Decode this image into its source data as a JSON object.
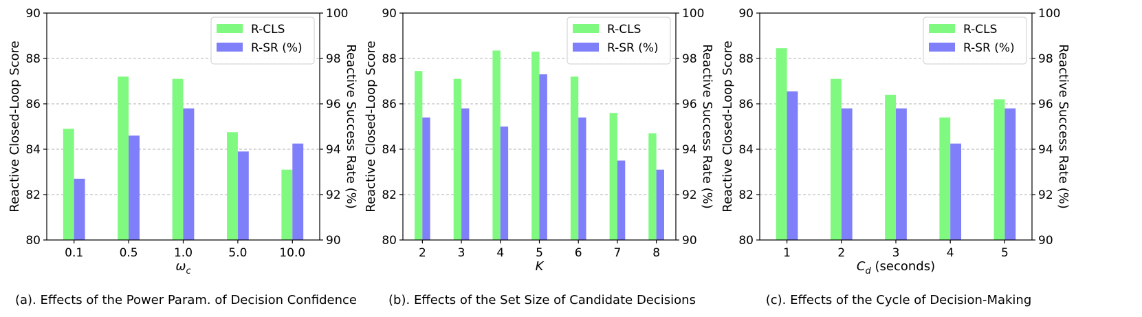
{
  "chart_data": [
    {
      "type": "bar",
      "caption": "(a). Effects of the Power Param. of Decision Confidence",
      "xlabel_parts": [
        {
          "t": "ω",
          "it": true
        },
        {
          "t": "c",
          "it": true,
          "sub": true
        }
      ],
      "ylabel": "Reactive Closed-Loop Score",
      "ylabel_right": "Reactive Success Rate (%)",
      "categories": [
        "0.1",
        "0.5",
        "1.0",
        "5.0",
        "10.0"
      ],
      "ylim": [
        80,
        90
      ],
      "ylim_right": [
        90,
        100
      ],
      "yticks": [
        "80",
        "82",
        "84",
        "86",
        "88",
        "90"
      ],
      "yticks_right": [
        "90",
        "92",
        "94",
        "96",
        "98",
        "100"
      ],
      "series": [
        {
          "name": "R-CLS",
          "axis": "left",
          "color": "#80f980",
          "values": [
            84.9,
            87.2,
            87.1,
            84.75,
            83.1
          ]
        },
        {
          "name": "R-SR (%)",
          "axis": "right",
          "color": "#7f7ff9",
          "values": [
            92.7,
            94.6,
            95.8,
            93.9,
            94.25
          ]
        }
      ],
      "legend_position": "upper right",
      "grid": "y-dashed"
    },
    {
      "type": "bar",
      "caption": "(b). Effects of the Set Size of Candidate Decisions",
      "xlabel_parts": [
        {
          "t": "K",
          "it": true
        }
      ],
      "ylabel": "Reactive Closed-Loop Score",
      "ylabel_right": "Reactive Success Rate (%)",
      "categories": [
        "2",
        "3",
        "4",
        "5",
        "6",
        "7",
        "8"
      ],
      "ylim": [
        80,
        90
      ],
      "ylim_right": [
        90,
        100
      ],
      "yticks": [
        "80",
        "82",
        "84",
        "86",
        "88",
        "90"
      ],
      "yticks_right": [
        "90",
        "92",
        "94",
        "96",
        "98",
        "100"
      ],
      "series": [
        {
          "name": "R-CLS",
          "axis": "left",
          "color": "#80f980",
          "values": [
            87.45,
            87.1,
            88.35,
            88.3,
            87.2,
            85.6,
            84.7
          ]
        },
        {
          "name": "R-SR (%)",
          "axis": "right",
          "color": "#7f7ff9",
          "values": [
            95.4,
            95.8,
            95.0,
            97.3,
            95.4,
            93.5,
            93.1
          ]
        }
      ],
      "legend_position": "upper right",
      "grid": "y-dashed"
    },
    {
      "type": "bar",
      "caption": "(c). Effects of the Cycle of Decision-Making",
      "xlabel_parts": [
        {
          "t": "C",
          "it": true
        },
        {
          "t": "d",
          "it": true,
          "sub": true
        },
        {
          "t": " (seconds)",
          "it": false
        }
      ],
      "ylabel": "Reactive Closed-Loop Score",
      "ylabel_right": "Reactive Success Rate (%)",
      "categories": [
        "1",
        "2",
        "3",
        "4",
        "5"
      ],
      "ylim": [
        80,
        90
      ],
      "ylim_right": [
        90,
        100
      ],
      "yticks": [
        "80",
        "82",
        "84",
        "86",
        "88",
        "90"
      ],
      "yticks_right": [
        "90",
        "92",
        "94",
        "96",
        "98",
        "100"
      ],
      "series": [
        {
          "name": "R-CLS",
          "axis": "left",
          "color": "#80f980",
          "values": [
            88.45,
            87.1,
            86.4,
            85.4,
            86.2
          ]
        },
        {
          "name": "R-SR (%)",
          "axis": "right",
          "color": "#7f7ff9",
          "values": [
            96.55,
            95.8,
            95.8,
            94.25,
            95.8
          ]
        }
      ],
      "legend_position": "upper right",
      "grid": "y-dashed"
    }
  ]
}
